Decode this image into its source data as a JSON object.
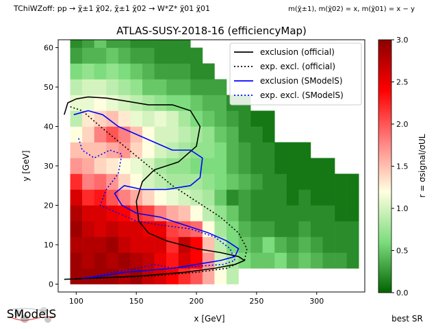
{
  "header": {
    "left": "TChiWZoff: pp → χ̃±1 χ̃02, χ̃±1 χ̃02 → W*Z* χ̃01 χ̃01",
    "right": "m(χ̃±1), m(χ̃02) = x, m(χ̃01) = x − y"
  },
  "logo": {
    "text": "SModelS"
  },
  "footer": {
    "best_sr": "best SR"
  },
  "colorbar": {
    "label": "r = σsignal/σUL",
    "ticks": [
      "0.0",
      "0.5",
      "1.0",
      "1.5",
      "2.0",
      "2.5",
      "3.0"
    ],
    "range": [
      0,
      3
    ],
    "stops": [
      "#006400",
      "#7ddc7d",
      "#ffffe0",
      "#ff8080",
      "#ff0000",
      "#8b0000"
    ]
  },
  "chart_data": {
    "type": "heatmap",
    "title": "ATLAS-SUSY-2018-16 (efficiencyMap)",
    "xlabel": "x [GeV]",
    "ylabel": "y [GeV]",
    "xlim": [
      85,
      340
    ],
    "ylim": [
      -2,
      62
    ],
    "xticks": [
      100,
      150,
      200,
      250,
      300
    ],
    "yticks": [
      0,
      10,
      20,
      30,
      40,
      50,
      60
    ],
    "grid_dx": 10,
    "grid_dy": 4,
    "legend": {
      "position": "top-right",
      "entries": [
        {
          "label": "exclusion (official)",
          "color": "#000000",
          "dash": "solid"
        },
        {
          "label": "exp. excl. (official)",
          "color": "#000000",
          "dash": "dotted"
        },
        {
          "label": "exclusion (SModelS)",
          "color": "#0000ff",
          "dash": "solid"
        },
        {
          "label": "exp. excl. (SModelS)",
          "color": "#0000ff",
          "dash": "dotted"
        }
      ]
    },
    "columns": [
      {
        "x": 100,
        "r": [
          2.9,
          2.9,
          2.8,
          2.9,
          2.8,
          2.6,
          2.2,
          1.7,
          1.5,
          1.2,
          0.9,
          1.1,
          0.9,
          0.6,
          0.3,
          0.2,
          0.6
        ]
      },
      {
        "x": 110,
        "r": [
          2.9,
          2.8,
          2.8,
          2.7,
          2.6,
          2.2,
          1.8,
          1.6,
          1.5,
          1.4,
          1.3,
          1.1,
          1.0,
          0.7,
          0.4,
          0.3,
          0.7
        ]
      },
      {
        "x": 120,
        "r": [
          2.9,
          2.9,
          2.8,
          2.6,
          2.6,
          2.3,
          1.9,
          1.4,
          1.5,
          1.8,
          1.4,
          1.2,
          1.0,
          0.6,
          0.4,
          0.5,
          0.6
        ]
      },
      {
        "x": 130,
        "r": [
          2.9,
          2.8,
          2.9,
          2.7,
          2.5,
          2.0,
          1.7,
          1.3,
          1.6,
          2.0,
          1.5,
          1.1,
          0.9,
          0.7,
          0.5,
          0.3,
          0.4
        ]
      },
      {
        "x": 140,
        "r": [
          2.8,
          2.9,
          2.7,
          2.6,
          2.4,
          1.8,
          1.4,
          1.2,
          1.7,
          1.8,
          1.3,
          1.0,
          0.8,
          0.6,
          0.4,
          0.3,
          0.3
        ]
      },
      {
        "x": 150,
        "r": [
          2.9,
          2.8,
          2.6,
          2.6,
          2.2,
          1.6,
          1.2,
          1.1,
          1.4,
          1.5,
          1.1,
          0.9,
          0.7,
          0.5,
          0.3,
          0.2
        ]
      },
      {
        "x": 160,
        "r": [
          2.7,
          2.7,
          2.6,
          2.5,
          2.1,
          1.4,
          1.0,
          1.0,
          1.2,
          1.2,
          1.0,
          0.8,
          0.5,
          0.4,
          0.3,
          0.2
        ]
      },
      {
        "x": 170,
        "r": [
          2.6,
          2.5,
          2.6,
          2.5,
          1.8,
          1.2,
          0.9,
          0.8,
          1.0,
          1.0,
          1.1,
          0.7,
          0.5,
          0.3,
          0.2,
          0.2
        ]
      },
      {
        "x": 180,
        "r": [
          2.4,
          2.3,
          2.2,
          2.1,
          1.6,
          1.1,
          0.8,
          0.7,
          0.9,
          1.0,
          1.0,
          0.6,
          0.4,
          0.3,
          0.2,
          0.2
        ]
      },
      {
        "x": 190,
        "r": [
          2.2,
          2.6,
          2.7,
          2.0,
          1.5,
          1.0,
          0.8,
          0.7,
          0.8,
          0.9,
          0.8,
          0.6,
          0.4,
          0.3,
          0.2,
          0.2
        ]
      },
      {
        "x": 200,
        "r": [
          2.0,
          2.4,
          2.4,
          1.9,
          1.2,
          0.9,
          0.8,
          0.6,
          0.7,
          0.8,
          0.6,
          0.5,
          0.3,
          0.2,
          0.2
        ]
      },
      {
        "x": 210,
        "r": [
          1.6,
          1.7,
          1.5,
          1.2,
          0.9,
          0.8,
          0.7,
          0.6,
          0.7,
          0.7,
          0.5,
          0.4,
          0.3,
          0.2
        ]
      },
      {
        "x": 220,
        "r": [
          1.2,
          1.0,
          0.9,
          0.8,
          0.7,
          0.5,
          0.6,
          0.6,
          0.6,
          0.5,
          0.4,
          0.4,
          0.3
        ]
      },
      {
        "x": 230,
        "r": [
          0.9,
          0.8,
          0.6,
          0.6,
          0.5,
          0.2,
          0.5,
          0.4,
          0.4,
          0.4,
          0.3,
          0.2
        ]
      },
      {
        "x": 240,
        "r": [
          null,
          0.6,
          0.5,
          0.4,
          0.3,
          0.3,
          0.4,
          0.3,
          0.3,
          0.2,
          0.2,
          0.2
        ]
      },
      {
        "x": 250,
        "r": [
          null,
          0.5,
          0.4,
          0.3,
          0.2,
          0.2,
          0.3,
          0.2,
          0.2,
          0.2,
          0.1
        ]
      },
      {
        "x": 260,
        "r": [
          null,
          0.5,
          0.6,
          0.3,
          0.2,
          0.2,
          0.2,
          0.2,
          0.2,
          0.1,
          0.1
        ]
      },
      {
        "x": 270,
        "r": [
          null,
          0.6,
          0.4,
          0.2,
          0.2,
          0.2,
          0.2,
          0.1,
          0.1
        ]
      },
      {
        "x": 280,
        "r": [
          null,
          0.4,
          0.3,
          0.2,
          0.2,
          0.1,
          0.1,
          0.1,
          0.1
        ]
      },
      {
        "x": 290,
        "r": [
          null,
          0.5,
          0.4,
          0.3,
          0.2,
          0.2,
          0.1,
          0.1,
          0.1
        ]
      },
      {
        "x": 300,
        "r": [
          null,
          0.4,
          0.3,
          0.2,
          0.2,
          0.1,
          0.1,
          0.1
        ]
      },
      {
        "x": 310,
        "r": [
          null,
          0.3,
          0.2,
          0.2,
          0.2,
          0.1,
          0.1,
          0.1
        ]
      },
      {
        "x": 320,
        "r": [
          null,
          0.3,
          0.2,
          0.2,
          0.1,
          0.1,
          0.1
        ]
      },
      {
        "x": 330,
        "r": [
          null,
          0.2,
          0.2,
          0.2,
          0.1,
          0.1,
          0.1
        ]
      }
    ],
    "curves": [
      {
        "name": "exclusion (official)",
        "color": "#000000",
        "dash": "solid",
        "points": [
          [
            90,
            43
          ],
          [
            93,
            46
          ],
          [
            100,
            47
          ],
          [
            110,
            47.5
          ],
          [
            125,
            47.2
          ],
          [
            140,
            46.5
          ],
          [
            160,
            45.5
          ],
          [
            180,
            45.5
          ],
          [
            195,
            44
          ],
          [
            203,
            40
          ],
          [
            200,
            35
          ],
          [
            185,
            31
          ],
          [
            165,
            29
          ],
          [
            155,
            26
          ],
          [
            150,
            21
          ],
          [
            152,
            16
          ],
          [
            160,
            13
          ],
          [
            175,
            11
          ],
          [
            200,
            9
          ],
          [
            220,
            8
          ],
          [
            235,
            7
          ],
          [
            240,
            6
          ],
          [
            232,
            5
          ],
          [
            215,
            4
          ],
          [
            190,
            3
          ],
          [
            150,
            2
          ],
          [
            110,
            1.5
          ],
          [
            90,
            1.2
          ]
        ]
      },
      {
        "name": "exp. excl. (official)",
        "color": "#000000",
        "dash": "dotted",
        "points": [
          [
            95,
            45
          ],
          [
            105,
            44
          ],
          [
            120,
            40
          ],
          [
            140,
            35
          ],
          [
            160,
            30
          ],
          [
            180,
            25
          ],
          [
            200,
            21
          ],
          [
            220,
            17
          ],
          [
            235,
            13
          ],
          [
            242,
            9
          ],
          [
            240,
            6
          ],
          [
            225,
            4
          ],
          [
            200,
            3
          ],
          [
            160,
            2
          ],
          [
            120,
            1.5
          ],
          [
            95,
            1.2
          ]
        ]
      },
      {
        "name": "exclusion (SModelS)",
        "color": "#0000ff",
        "dash": "solid",
        "points": [
          [
            98,
            43
          ],
          [
            110,
            44
          ],
          [
            122,
            43
          ],
          [
            135,
            40
          ],
          [
            150,
            38
          ],
          [
            165,
            36
          ],
          [
            180,
            34
          ],
          [
            195,
            34
          ],
          [
            205,
            32
          ],
          [
            203,
            27
          ],
          [
            195,
            25
          ],
          [
            175,
            24
          ],
          [
            155,
            24
          ],
          [
            140,
            25
          ],
          [
            132,
            23
          ],
          [
            138,
            20
          ],
          [
            150,
            18
          ],
          [
            170,
            17
          ],
          [
            190,
            15
          ],
          [
            210,
            13
          ],
          [
            225,
            11
          ],
          [
            235,
            9
          ],
          [
            232,
            7
          ],
          [
            220,
            6
          ],
          [
            200,
            5
          ],
          [
            180,
            4
          ],
          [
            160,
            3.5
          ],
          [
            140,
            3
          ],
          [
            120,
            2
          ],
          [
            105,
            1.5
          ]
        ]
      },
      {
        "name": "exp. excl. (SModelS)",
        "color": "#0000ff",
        "dash": "dotted",
        "points": [
          [
            102,
            37
          ],
          [
            105,
            34
          ],
          [
            115,
            32
          ],
          [
            128,
            34
          ],
          [
            138,
            33
          ],
          [
            135,
            28
          ],
          [
            125,
            24
          ],
          [
            120,
            20
          ],
          [
            135,
            18
          ],
          [
            150,
            16
          ],
          [
            170,
            15
          ],
          [
            195,
            14
          ],
          [
            215,
            12
          ],
          [
            228,
            9
          ],
          [
            232,
            6
          ],
          [
            222,
            5
          ],
          [
            200,
            4.5
          ],
          [
            180,
            4
          ],
          [
            165,
            5
          ],
          [
            150,
            4
          ],
          [
            130,
            3
          ],
          [
            115,
            2
          ]
        ]
      }
    ]
  }
}
